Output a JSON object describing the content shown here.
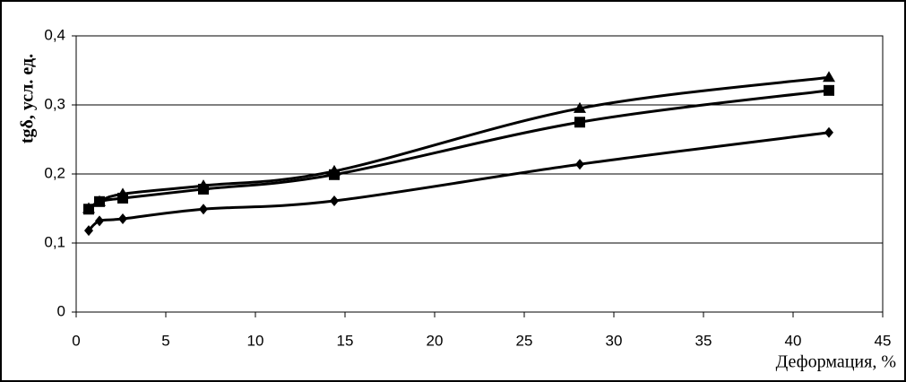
{
  "chart_data": {
    "type": "line",
    "y_label": "tgδ, усл. ед.",
    "x_label": "Деформация, %",
    "x": [
      0.7,
      1.3,
      2.6,
      7.1,
      14.4,
      28.1,
      42
    ],
    "series": [
      {
        "color": "#000000",
        "marker": "diamond",
        "values": [
          0.118,
          0.132,
          0.135,
          0.149,
          0.161,
          0.214,
          0.26
        ]
      },
      {
        "color": "#000000",
        "marker": "square",
        "values": [
          0.149,
          0.16,
          0.165,
          0.178,
          0.199,
          0.275,
          0.321
        ]
      },
      {
        "color": "#000000",
        "marker": "triangle",
        "values": [
          0.15,
          0.16,
          0.171,
          0.183,
          0.204,
          0.295,
          0.34
        ]
      }
    ],
    "xlim": [
      0,
      45
    ],
    "xticks": [
      0,
      5,
      10,
      15,
      20,
      25,
      30,
      35,
      40,
      45
    ],
    "ylim": [
      0,
      0.4
    ],
    "yticks": [
      {
        "value": 0,
        "label": "0"
      },
      {
        "value": 0.1,
        "label": "0,1"
      },
      {
        "value": 0.2,
        "label": "0,2"
      },
      {
        "value": 0.3,
        "label": "0,3"
      },
      {
        "value": 0.4,
        "label": "0,4"
      }
    ],
    "grid": true
  }
}
